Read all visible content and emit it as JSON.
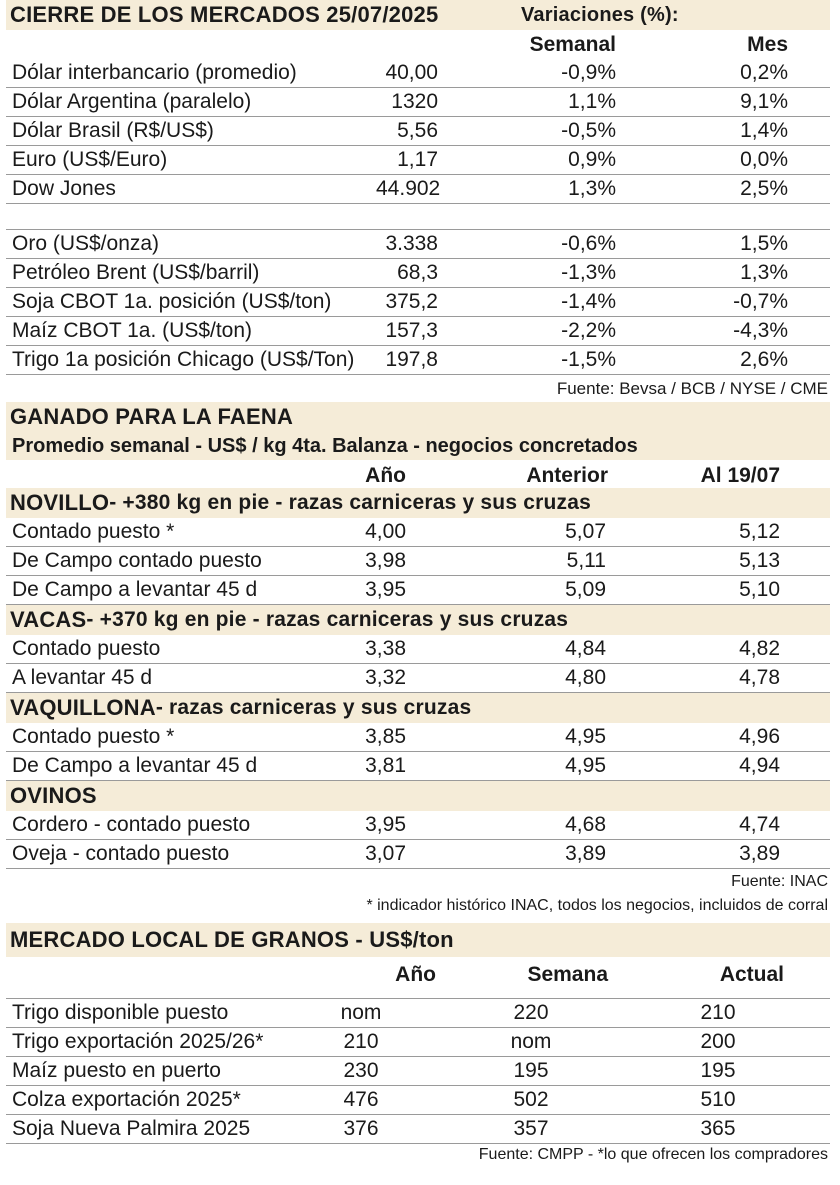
{
  "mercados": {
    "title": "CIERRE DE LOS MERCADOS  25/07/2025",
    "variaciones_label": "Variaciones (%):",
    "col_semanal": "Semanal",
    "col_mes": "Mes",
    "rows": [
      {
        "label": "Dólar interbancario (promedio)",
        "value": "40,00",
        "semanal": "-0,9%",
        "mes": "0,2%"
      },
      {
        "label": "Dólar Argentina (paralelo)",
        "value": "1320",
        "semanal": "1,1%",
        "mes": "9,1%"
      },
      {
        "label": "Dólar Brasil (R$/US$)",
        "value": "5,56",
        "semanal": "-0,5%",
        "mes": "1,4%"
      },
      {
        "label": "Euro (US$/Euro)",
        "value": "1,17",
        "semanal": "0,9%",
        "mes": "0,0%"
      },
      {
        "label": "Dow Jones",
        "value": "44.902",
        "semanal": "1,3%",
        "mes": "2,5%"
      },
      {
        "label": "Oro (US$/onza)",
        "value": "3.338",
        "semanal": "-0,6%",
        "mes": "1,5%"
      },
      {
        "label": "Petróleo Brent (US$/barril)",
        "value": "68,3",
        "semanal": "-1,3%",
        "mes": "1,3%"
      },
      {
        "label": "Soja CBOT 1a. posición (US$/ton)",
        "value": "375,2",
        "semanal": "-1,4%",
        "mes": "-0,7%"
      },
      {
        "label": "Maíz CBOT 1a. (US$/ton)",
        "value": "157,3",
        "semanal": "-2,2%",
        "mes": "-4,3%"
      },
      {
        "label": "Trigo 1a posición Chicago (US$/Ton)",
        "value": "197,8",
        "semanal": "-1,5%",
        "mes": "2,6%"
      }
    ],
    "source": "Fuente: Bevsa / BCB / NYSE / CME"
  },
  "ganado": {
    "title": "GANADO PARA LA FAENA",
    "subtitle": "Promedio semanal - US$ / kg 4ta. Balanza - negocios concretados",
    "col_ano": "Año",
    "col_anterior": "Anterior",
    "col_al": "Al 19/07",
    "categories": [
      {
        "name": "NOVILLO",
        "desc": " - +380 kg en pie - razas carniceras y sus cruzas",
        "rows": [
          {
            "label": "Contado puesto *",
            "a": "4,00",
            "b": "5,07",
            "c": "5,12"
          },
          {
            "label": "De Campo contado puesto",
            "a": "3,98",
            "b": "5,11",
            "c": "5,13"
          },
          {
            "label": "De Campo a levantar 45 d",
            "a": "3,95",
            "b": "5,09",
            "c": "5,10"
          }
        ]
      },
      {
        "name": "VACAS",
        "desc": " - +370 kg en pie - razas carniceras y sus cruzas",
        "rows": [
          {
            "label": "Contado puesto",
            "a": "3,38",
            "b": "4,84",
            "c": "4,82"
          },
          {
            "label": "A levantar 45 d",
            "a": "3,32",
            "b": "4,80",
            "c": "4,78"
          }
        ]
      },
      {
        "name": "VAQUILLONA",
        "desc": " - razas carniceras y sus cruzas",
        "rows": [
          {
            "label": "Contado puesto *",
            "a": "3,85",
            "b": "4,95",
            "c": "4,96"
          },
          {
            "label": "De Campo a levantar 45 d",
            "a": "3,81",
            "b": "4,95",
            "c": "4,94"
          }
        ]
      },
      {
        "name": "OVINOS",
        "desc": "",
        "rows": [
          {
            "label": "Cordero - contado puesto",
            "a": "3,95",
            "b": "4,68",
            "c": "4,74"
          },
          {
            "label": "Oveja - contado puesto",
            "a": "3,07",
            "b": "3,89",
            "c": "3,89"
          }
        ]
      }
    ],
    "source": "Fuente: INAC",
    "note": "* indicador histórico INAC, todos los negocios, incluidos de corral"
  },
  "granos": {
    "title": "MERCADO LOCAL DE GRANOS - US$/ton",
    "col_ano": "Año",
    "col_semana": "Semana",
    "col_actual": "Actual",
    "rows": [
      {
        "label": "Trigo disponible puesto",
        "a": "nom",
        "b": "220",
        "c": "210"
      },
      {
        "label": "Trigo exportación 2025/26*",
        "a": "210",
        "b": "nom",
        "c": "200"
      },
      {
        "label": "Maíz puesto en puerto",
        "a": "230",
        "b": "195",
        "c": "195"
      },
      {
        "label": "Colza exportación 2025*",
        "a": "476",
        "b": "502",
        "c": "510"
      },
      {
        "label": "Soja Nueva Palmira 2025",
        "a": "376",
        "b": "357",
        "c": "365"
      }
    ],
    "source": "Fuente: CMPP - *lo que ofrecen los compradores"
  }
}
